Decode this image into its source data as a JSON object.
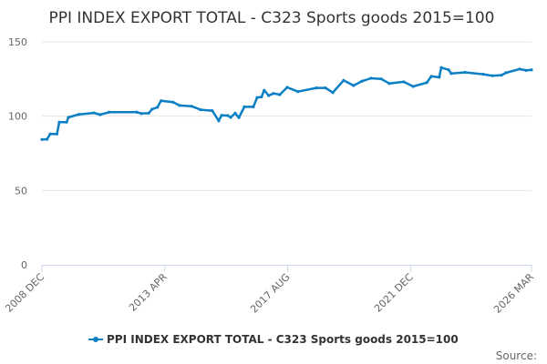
{
  "chart_data": {
    "type": "line",
    "title": "PPI INDEX EXPORT TOTAL - C323 Sports goods 2015=100",
    "xlabel": "",
    "ylabel": "",
    "ylim": [
      0,
      150
    ],
    "yticks": [
      0,
      50,
      100,
      150
    ],
    "xlim": [
      2008.92,
      2026.17
    ],
    "xticks": [
      {
        "label": "2008 DEC",
        "value": 2008.92
      },
      {
        "label": "2013 APR",
        "value": 2013.25
      },
      {
        "label": "2017 AUG",
        "value": 2017.58
      },
      {
        "label": "2021 DEC",
        "value": 2021.92
      },
      {
        "label": "2026 MAR",
        "value": 2026.17
      }
    ],
    "grid": true,
    "legend_position": "bottom",
    "color": "#0a7fc4",
    "series": [
      {
        "name": "PPI INDEX EXPORT TOTAL - C323 Sports goods 2015=100",
        "x": [
          2008.92,
          2009.1,
          2009.21,
          2009.45,
          2009.53,
          2009.79,
          2009.85,
          2010.22,
          2010.75,
          2010.97,
          2011.29,
          2012.26,
          2012.42,
          2012.68,
          2012.8,
          2012.99,
          2013.12,
          2013.54,
          2013.77,
          2014.19,
          2014.51,
          2014.92,
          2015.15,
          2015.25,
          2015.47,
          2015.57,
          2015.73,
          2015.86,
          2016.05,
          2016.37,
          2016.5,
          2016.66,
          2016.75,
          2016.91,
          2017.08,
          2017.3,
          2017.56,
          2017.94,
          2018.59,
          2018.91,
          2019.17,
          2019.55,
          2019.9,
          2020.19,
          2020.51,
          2020.87,
          2021.16,
          2021.67,
          2022.0,
          2022.48,
          2022.64,
          2022.92,
          2022.99,
          2023.25,
          2023.34,
          2023.82,
          2024.47,
          2024.79,
          2025.11,
          2025.27,
          2025.75,
          2025.98,
          2026.17
        ],
        "values": [
          84.3,
          84.5,
          88,
          88,
          96,
          96,
          99.2,
          101.2,
          102.2,
          101,
          102.7,
          102.7,
          101.8,
          102,
          104.7,
          106,
          110.4,
          109.4,
          107.2,
          106.7,
          104.3,
          103.7,
          96.9,
          100.6,
          100.4,
          99.2,
          102,
          99,
          106.3,
          106.3,
          112.5,
          113,
          117.4,
          113.9,
          115.3,
          114.5,
          119.4,
          116.5,
          119,
          119,
          115.9,
          124.1,
          120.6,
          123.5,
          125.5,
          125.1,
          122,
          123.1,
          120,
          122.6,
          126.8,
          126.2,
          132.7,
          131.2,
          128.7,
          129.5,
          128.2,
          127.2,
          127.6,
          129.2,
          131.7,
          130.8,
          131.2
        ]
      }
    ]
  },
  "footer": {
    "source": "Source:"
  }
}
